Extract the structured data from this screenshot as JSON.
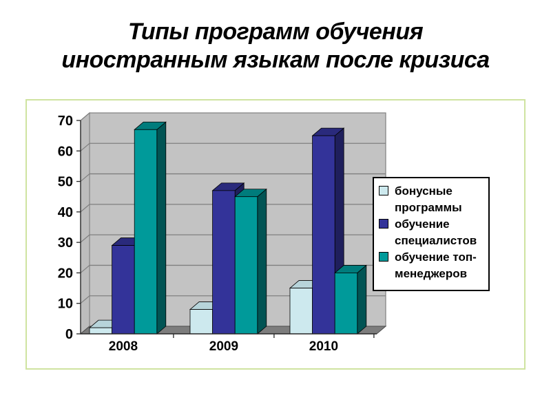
{
  "title": {
    "line1": "Типы программ обучения",
    "line2": "иностранным языкам после кризиса"
  },
  "chart_data": {
    "type": "bar",
    "projection": "3d",
    "title": "Типы программ обучения иностранным языкам после кризиса",
    "categories": [
      "2008",
      "2009",
      "2010"
    ],
    "series": [
      {
        "name": "бонусные программы",
        "values": [
          2,
          8,
          15
        ],
        "color": "#cde9ee",
        "color_top": "#b7d4da",
        "color_side": "#9dc0c7"
      },
      {
        "name": "обучение специалистов",
        "values": [
          29,
          47,
          65
        ],
        "color": "#333399",
        "color_top": "#2a2a7c",
        "color_side": "#1f1f5c"
      },
      {
        "name": "обучение топ-менеджеров",
        "values": [
          67,
          45,
          20
        ],
        "color": "#009a9a",
        "color_top": "#007c7c",
        "color_side": "#015454"
      }
    ],
    "xlabel": "",
    "ylabel": "",
    "ylim": [
      0,
      70
    ],
    "yticks": [
      0,
      10,
      20,
      30,
      40,
      50,
      60,
      70
    ],
    "grid": true,
    "legend_position": "right",
    "wall_color": "#c3c3c3",
    "floor_color": "#7d7d7d",
    "gridline_color": "#7f7f7f"
  }
}
